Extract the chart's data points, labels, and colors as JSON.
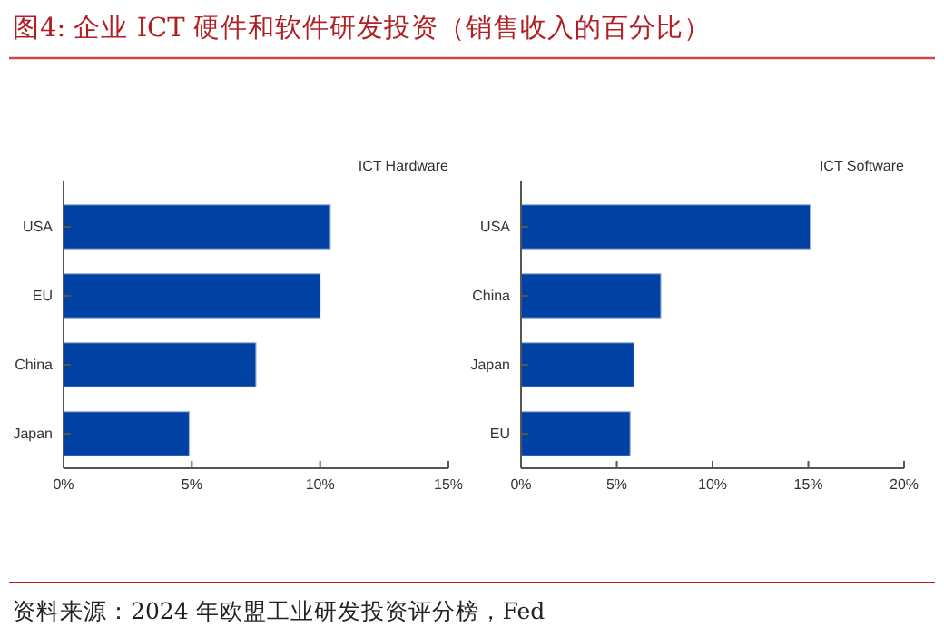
{
  "chart_data": [
    {
      "type": "bar",
      "orientation": "horizontal",
      "title": "ICT Hardware",
      "annotations": [
        "图4:   企业 ICT 硬件和软件研发投资（销售收入的百分比）",
        "资料来源：2024 年欧盟工业研发投资评分榜，Fed"
      ],
      "categories": [
        "USA",
        "EU",
        "China",
        "Japan"
      ],
      "values": [
        10.4,
        10.0,
        7.5,
        4.9
      ],
      "color": "#0041a3",
      "xlim": [
        0,
        15
      ],
      "xticks": [
        {
          "value": 0,
          "label": "0%"
        },
        {
          "value": 5,
          "label": "5%"
        },
        {
          "value": 10,
          "label": "10%"
        },
        {
          "value": 15,
          "label": "15%"
        }
      ],
      "grid": false
    },
    {
      "type": "bar",
      "orientation": "horizontal",
      "title": "ICT Software",
      "categories": [
        "USA",
        "China",
        "Japan",
        "EU"
      ],
      "values": [
        15.1,
        7.3,
        5.9,
        5.7
      ],
      "color": "#0041a3",
      "xlim": [
        0,
        20
      ],
      "xticks": [
        {
          "value": 0,
          "label": "0%"
        },
        {
          "value": 5,
          "label": "5%"
        },
        {
          "value": 10,
          "label": "10%"
        },
        {
          "value": 15,
          "label": "15%"
        },
        {
          "value": 20,
          "label": "20%"
        }
      ],
      "grid": false
    }
  ]
}
